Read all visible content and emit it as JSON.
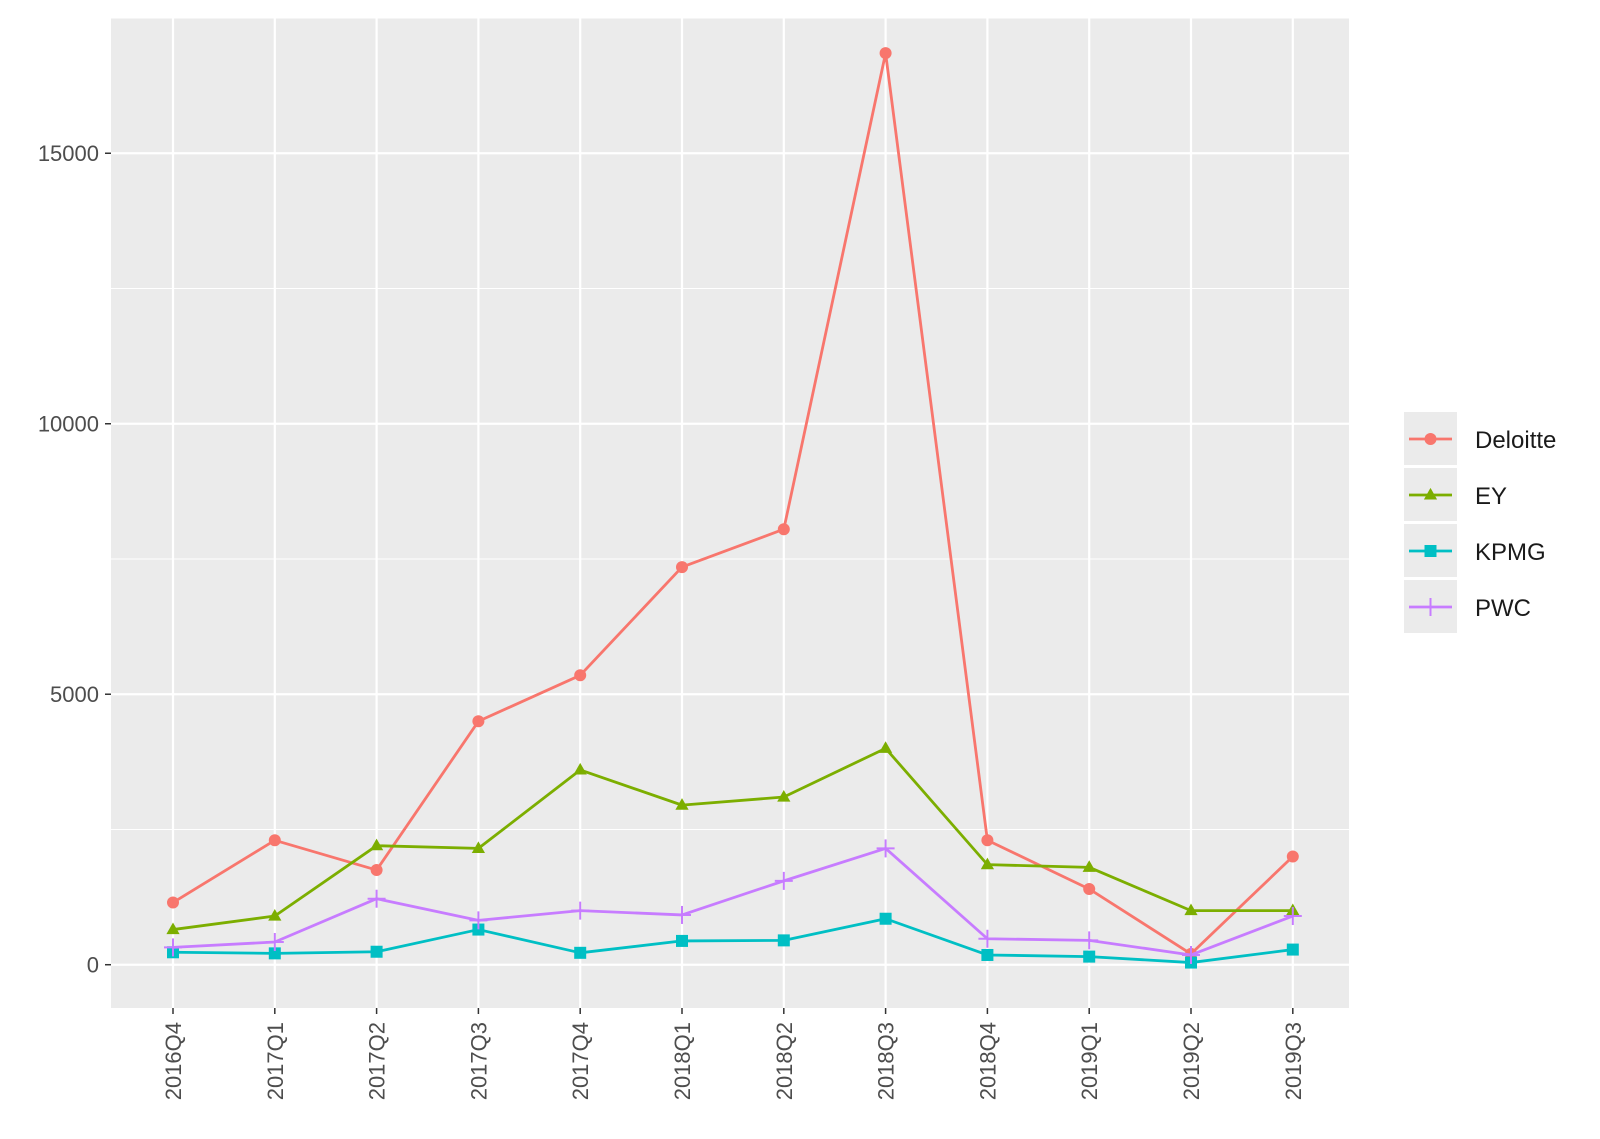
{
  "chart_data": {
    "type": "line",
    "title": "",
    "xlabel": "",
    "ylabel": "",
    "categories": [
      "2016Q4",
      "2017Q1",
      "2017Q2",
      "2017Q3",
      "2017Q4",
      "2018Q1",
      "2018Q2",
      "2018Q3",
      "2018Q4",
      "2019Q1",
      "2019Q2",
      "2019Q3"
    ],
    "ylim": [
      -800,
      17500
    ],
    "yticks": [
      0,
      5000,
      10000,
      15000
    ],
    "ytick_labels": [
      "0",
      "5000",
      "10000",
      "15000"
    ],
    "grid": true,
    "legend_position": "right",
    "panel_background": "#ebebeb",
    "series": [
      {
        "name": "Deloitte",
        "color": "#f8766d",
        "marker": "circle",
        "values": [
          1150,
          2300,
          1750,
          4500,
          5350,
          7350,
          8050,
          16850,
          2300,
          1400,
          200,
          2000
        ]
      },
      {
        "name": "EY",
        "color": "#7cae00",
        "marker": "triangle",
        "values": [
          650,
          900,
          2200,
          2150,
          3600,
          2950,
          3100,
          4000,
          1850,
          1800,
          1000,
          1000
        ]
      },
      {
        "name": "KPMG",
        "color": "#00bfc4",
        "marker": "square",
        "values": [
          230,
          210,
          240,
          650,
          220,
          440,
          450,
          850,
          180,
          150,
          40,
          280
        ]
      },
      {
        "name": "PWC",
        "color": "#c77cff",
        "marker": "plus",
        "values": [
          320,
          420,
          1220,
          820,
          1000,
          920,
          1550,
          2150,
          480,
          450,
          180,
          900
        ]
      }
    ]
  }
}
